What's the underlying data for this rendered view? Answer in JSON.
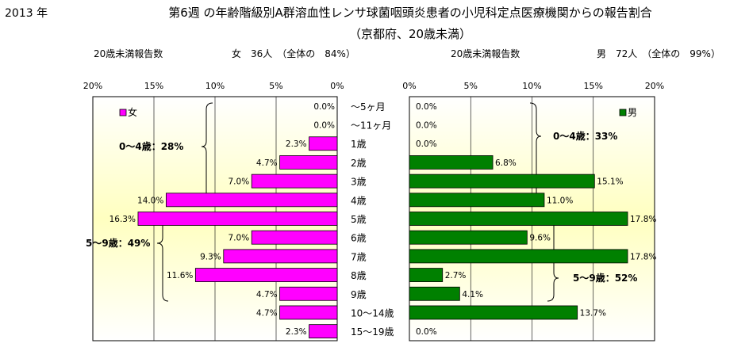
{
  "header": {
    "year": "2013 年",
    "title_line1": "第6週 の年齢階級別A群溶血性レンサ球菌咽頭炎患者の小児科定点医療機関からの報告割合",
    "title_line2": "（京都府、20歳未満）"
  },
  "left_panel": {
    "subtitle": "20歳未満報告数",
    "total": "女　36人　（全体の　84%）",
    "legend": "女",
    "group1_annotation": "0～4歳：28%",
    "group2_annotation": "5～9歳：49%"
  },
  "right_panel": {
    "subtitle": "20歳未満報告数",
    "total": "男　72人　（全体の　99%）",
    "legend": "男",
    "group1_annotation": "0～4歳：33%",
    "group2_annotation": "5～9歳：52%"
  },
  "chart_data": {
    "type": "bar",
    "orientation": "horizontal",
    "categories": [
      "～5ヶ月",
      "～11ヶ月",
      "1歳",
      "2歳",
      "3歳",
      "4歳",
      "5歳",
      "6歳",
      "7歳",
      "8歳",
      "9歳",
      "10～14歳",
      "15～19歳"
    ],
    "xlim": [
      0,
      20
    ],
    "x_ticks": [
      "20%",
      "15%",
      "10%",
      "5%",
      "0%"
    ],
    "x_ticks_right": [
      "0%",
      "5%",
      "10%",
      "15%",
      "20%"
    ],
    "series": [
      {
        "name": "女",
        "color": "#ff00ff",
        "values": [
          0.0,
          0.0,
          2.3,
          4.7,
          7.0,
          14.0,
          16.3,
          7.0,
          9.3,
          11.6,
          4.7,
          4.7,
          2.3
        ],
        "labels": [
          "0.0%",
          "0.0%",
          "2.3%",
          "4.7%",
          "7.0%",
          "14.0%",
          "16.3%",
          "7.0%",
          "9.3%",
          "11.6%",
          "4.7%",
          "4.7%",
          "2.3%"
        ]
      },
      {
        "name": "男",
        "color": "#008000",
        "values": [
          0.0,
          0.0,
          0.0,
          6.8,
          15.1,
          11.0,
          17.8,
          9.6,
          17.8,
          2.7,
          4.1,
          13.7,
          0.0
        ],
        "labels": [
          "0.0%",
          "0.0%",
          "0.0%",
          "6.8%",
          "15.1%",
          "11.0%",
          "17.8%",
          "9.6%",
          "17.8%",
          "2.7%",
          "4.1%",
          "13.7%",
          "0.0%"
        ]
      }
    ],
    "grid": true
  }
}
